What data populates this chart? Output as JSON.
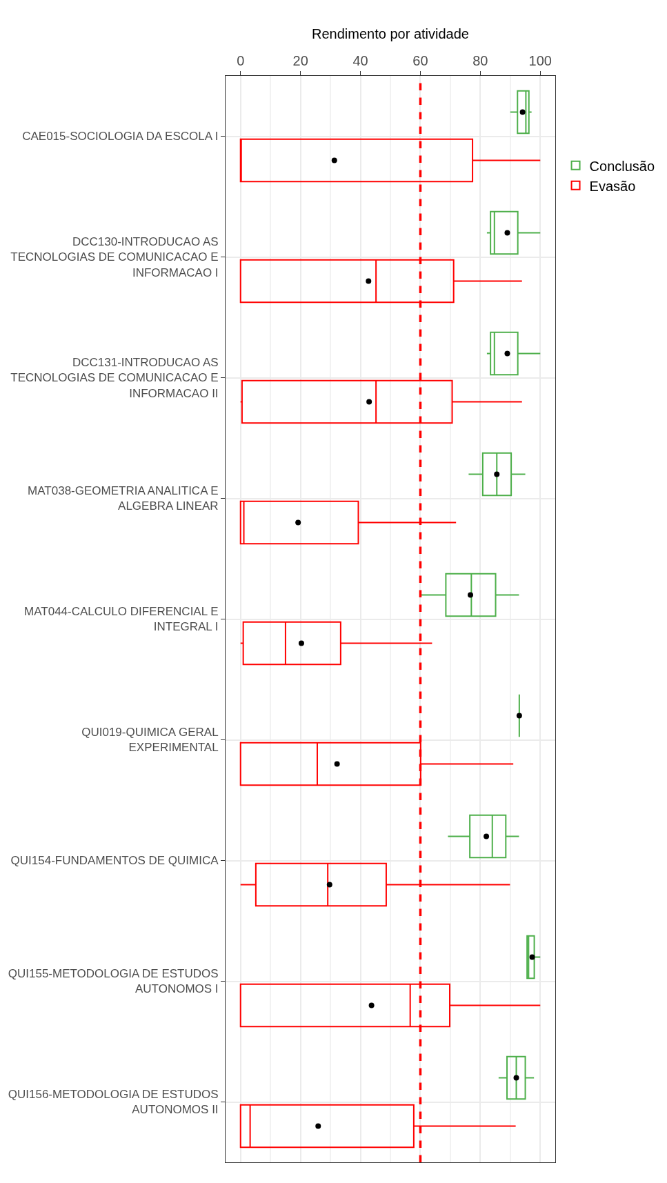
{
  "chart_data": {
    "type": "box",
    "orientation": "horizontal",
    "xlabel": "Rendimento por atividade",
    "categories": [
      "CAE015-SOCIOLOGIA DA ESCOLA I",
      "DCC130-INTRODUCAO AS\nTECNOLOGIAS DE COMUNICACAO E\nINFORMACAO I",
      "DCC131-INTRODUCAO AS\nTECNOLOGIAS DE COMUNICACAO E\nINFORMACAO II",
      "MAT038-GEOMETRIA ANALITICA E\nALGEBRA LINEAR",
      "MAT044-CALCULO DIFERENCIAL E\nINTEGRAL I",
      "QUI019-QUIMICA GERAL\nEXPERIMENTAL",
      "QUI154-FUNDAMENTOS DE QUIMICA",
      "QUI155-METODOLOGIA DE ESTUDOS\nAUTONOMOS I",
      "QUI156-METODOLOGIA DE ESTUDOS\nAUTONOMOS II"
    ],
    "series": [
      {
        "name": "Conclusão",
        "color": "#4daf4a",
        "boxes": [
          {
            "low": 90.0,
            "q1": 92.4,
            "median": 95.2,
            "q3": 96.2,
            "high": 97.1,
            "mean": 94.1
          },
          {
            "low": 82.2,
            "q1": 83.4,
            "median": 84.7,
            "q3": 92.5,
            "high": 100,
            "mean": 89.0
          },
          {
            "low": 82.2,
            "q1": 83.4,
            "median": 84.7,
            "q3": 92.5,
            "high": 100,
            "mean": 89.0
          },
          {
            "low": 76.1,
            "q1": 80.8,
            "median": 85.5,
            "q3": 90.3,
            "high": 95.0,
            "mean": 85.5
          },
          {
            "low": 60.1,
            "q1": 68.5,
            "median": 77.0,
            "q3": 85.1,
            "high": 92.9,
            "mean": 76.7
          },
          {
            "low": 93.0,
            "q1": 93.0,
            "median": 93.0,
            "q3": 93.0,
            "high": 93.0,
            "mean": 93.0
          },
          {
            "low": 69.2,
            "q1": 76.5,
            "median": 84.0,
            "q3": 88.5,
            "high": 92.9,
            "mean": 82.0
          },
          {
            "low": 95.6,
            "q1": 95.6,
            "median": 96.1,
            "q3": 98.0,
            "high": 100,
            "mean": 97.3
          },
          {
            "low": 86.1,
            "q1": 88.9,
            "median": 92.0,
            "q3": 95.0,
            "high": 97.9,
            "mean": 92.0
          }
        ]
      },
      {
        "name": "Evasão",
        "color": "#ff0000",
        "boxes": [
          {
            "low": 0,
            "q1": 0,
            "median": 0,
            "q3": 77.4,
            "high": 100,
            "mean": 31.3
          },
          {
            "low": 0,
            "q1": 0,
            "median": 45.2,
            "q3": 71.1,
            "high": 93.9,
            "mean": 42.7
          },
          {
            "low": 0,
            "q1": 0.5,
            "median": 45.2,
            "q3": 70.6,
            "high": 93.9,
            "mean": 42.9
          },
          {
            "low": 0,
            "q1": 0,
            "median": 1.1,
            "q3": 39.3,
            "high": 71.9,
            "mean": 19.2
          },
          {
            "low": 0,
            "q1": 0.9,
            "median": 15.0,
            "q3": 33.4,
            "high": 63.9,
            "mean": 20.3
          },
          {
            "low": 0,
            "q1": 0,
            "median": 25.6,
            "q3": 60.1,
            "high": 91.0,
            "mean": 32.2
          },
          {
            "low": 0,
            "q1": 5.1,
            "median": 29.1,
            "q3": 48.6,
            "high": 89.9,
            "mean": 29.7
          },
          {
            "low": 0,
            "q1": 0,
            "median": 56.6,
            "q3": 69.8,
            "high": 100,
            "mean": 43.7
          },
          {
            "low": 0,
            "q1": 0,
            "median": 3.2,
            "q3": 57.8,
            "high": 91.8,
            "mean": 25.9
          }
        ]
      }
    ],
    "xlim": [
      -5,
      105
    ],
    "xticks": [
      0,
      {
        "value": 10,
        "label": null
      },
      20,
      {
        "value": 30,
        "label": null
      },
      40,
      {
        "value": 50,
        "label": null
      },
      60,
      {
        "value": 70,
        "label": null
      },
      80,
      {
        "value": 90,
        "label": null
      },
      100
    ],
    "ref_lines": [
      {
        "axis": "x",
        "value": 60,
        "color": "#ff0000",
        "line_style": "dashed"
      }
    ],
    "grid": true,
    "legend": "right"
  }
}
